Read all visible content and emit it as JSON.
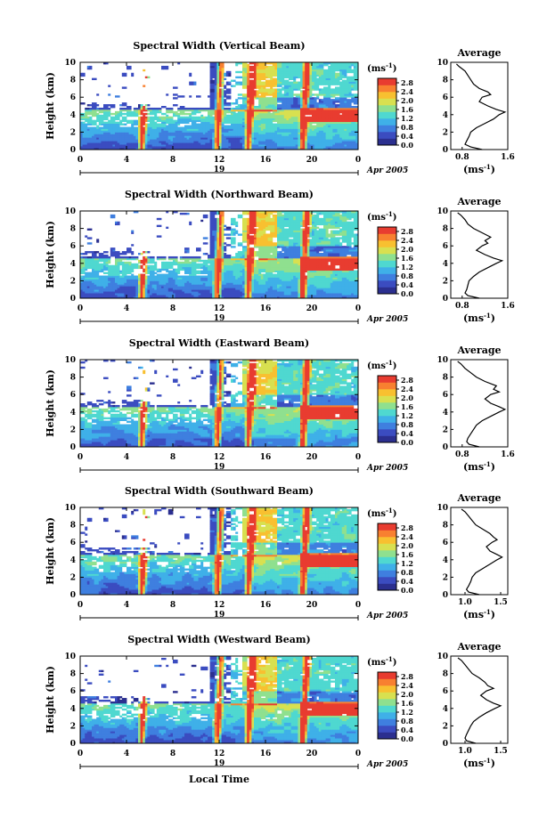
{
  "figure": {
    "xlabel": "Local Time",
    "cbar_unit": "(ms",
    "cbar_unit_exp": "-1",
    "cbar_unit_close": ")",
    "avg_unit": "(ms",
    "avg_unit_exp": "-1",
    "avg_unit_close": ")",
    "date_day": "19",
    "date_month_year": "Apr 2005",
    "colors": {
      "cmap": [
        "#2b2f8f",
        "#3b4cc0",
        "#3f7fdf",
        "#3fb0e8",
        "#4fd8d0",
        "#8fe08f",
        "#d8e050",
        "#f8c030",
        "#f88030",
        "#e83c30"
      ]
    }
  },
  "chart_data": [
    {
      "type": "heatmap",
      "title": "Spectral Width (Vertical Beam)",
      "ylabel": "Height (km)",
      "xlim": [
        0,
        24
      ],
      "ylim": [
        0,
        10
      ],
      "xticks": [
        "0",
        "4",
        "8",
        "12",
        "16",
        "20",
        "0"
      ],
      "yticks": [
        "0",
        "2",
        "4",
        "6",
        "8",
        "10"
      ],
      "cbar_ticks": [
        "0.0",
        "0.4",
        "0.8",
        "1.2",
        "1.6",
        "2.0",
        "2.4",
        "2.8"
      ],
      "cbar_range": [
        0,
        3.0
      ],
      "avg_title": "Average",
      "avg_xlim": [
        0.6,
        1.6
      ],
      "avg_xticks": [
        "0.8",
        "1.6"
      ],
      "avg_profile": {
        "height_km": [
          0.0,
          0.3,
          0.6,
          1.0,
          1.5,
          2.0,
          2.5,
          3.0,
          3.5,
          4.0,
          4.3,
          4.6,
          5.0,
          5.5,
          6.0,
          6.3,
          6.6,
          7.0,
          7.5,
          8.0,
          8.5,
          9.0,
          9.5,
          9.8
        ],
        "width_ms": [
          1.15,
          0.95,
          0.85,
          0.88,
          0.92,
          0.95,
          1.05,
          1.2,
          1.35,
          1.45,
          1.55,
          1.4,
          1.25,
          1.1,
          1.15,
          1.3,
          1.25,
          1.1,
          1.0,
          0.95,
          0.9,
          0.85,
          0.75,
          0.7
        ]
      }
    },
    {
      "type": "heatmap",
      "title": "Spectral Width (Northward Beam)",
      "ylabel": "Height (km)",
      "xlim": [
        0,
        24
      ],
      "ylim": [
        0,
        10
      ],
      "xticks": [
        "0",
        "4",
        "8",
        "12",
        "16",
        "20",
        "0"
      ],
      "yticks": [
        "0",
        "2",
        "4",
        "6",
        "8",
        "10"
      ],
      "cbar_ticks": [
        "0.0",
        "0.4",
        "0.8",
        "1.2",
        "1.6",
        "2.0",
        "2.4",
        "2.8"
      ],
      "cbar_range": [
        0,
        3.0
      ],
      "avg_title": "Average",
      "avg_xlim": [
        0.6,
        1.6
      ],
      "avg_xticks": [
        "0.8",
        "1.6"
      ],
      "avg_profile": {
        "height_km": [
          0.0,
          0.3,
          0.6,
          1.0,
          1.5,
          2.0,
          2.5,
          3.0,
          3.5,
          4.0,
          4.3,
          4.6,
          5.0,
          5.5,
          6.0,
          6.3,
          6.6,
          7.0,
          7.5,
          8.0,
          8.5,
          9.0,
          9.5,
          9.8
        ],
        "width_ms": [
          1.1,
          0.9,
          0.85,
          0.88,
          0.9,
          0.92,
          1.0,
          1.1,
          1.25,
          1.4,
          1.5,
          1.35,
          1.2,
          1.05,
          1.15,
          1.25,
          1.2,
          1.3,
          1.15,
          1.0,
          0.9,
          0.85,
          0.78,
          0.72
        ]
      }
    },
    {
      "type": "heatmap",
      "title": "Spectral Width (Eastward Beam)",
      "ylabel": "Height (km)",
      "xlim": [
        0,
        24
      ],
      "ylim": [
        0,
        10
      ],
      "xticks": [
        "0",
        "4",
        "8",
        "12",
        "16",
        "20",
        "0"
      ],
      "yticks": [
        "0",
        "2",
        "4",
        "6",
        "8",
        "10"
      ],
      "cbar_ticks": [
        "0.0",
        "0.4",
        "0.8",
        "1.2",
        "1.6",
        "2.0",
        "2.4",
        "2.8"
      ],
      "cbar_range": [
        0,
        3.0
      ],
      "avg_title": "Average",
      "avg_xlim": [
        0.6,
        1.6
      ],
      "avg_xticks": [
        "0.8",
        "1.6"
      ],
      "avg_profile": {
        "height_km": [
          0.0,
          0.3,
          0.6,
          1.0,
          1.5,
          2.0,
          2.5,
          3.0,
          3.5,
          4.0,
          4.3,
          4.6,
          5.0,
          5.5,
          6.0,
          6.3,
          6.6,
          7.0,
          7.5,
          8.0,
          8.5,
          9.0,
          9.5,
          9.8
        ],
        "width_ms": [
          1.1,
          0.92,
          0.88,
          0.9,
          0.95,
          1.0,
          1.05,
          1.15,
          1.3,
          1.45,
          1.55,
          1.45,
          1.3,
          1.2,
          1.3,
          1.45,
          1.35,
          1.4,
          1.2,
          1.05,
          0.95,
          0.85,
          0.78,
          0.72
        ]
      }
    },
    {
      "type": "heatmap",
      "title": "Spectral Width (Southward Beam)",
      "ylabel": "Height (km)",
      "xlim": [
        0,
        24
      ],
      "ylim": [
        0,
        10
      ],
      "xticks": [
        "0",
        "4",
        "8",
        "12",
        "16",
        "20",
        "0"
      ],
      "yticks": [
        "0",
        "2",
        "4",
        "6",
        "8",
        "10"
      ],
      "cbar_ticks": [
        "0.0",
        "0.4",
        "0.8",
        "1.2",
        "1.6",
        "2.0",
        "2.4",
        "2.8"
      ],
      "cbar_range": [
        0,
        3.0
      ],
      "avg_title": "Average",
      "avg_xlim": [
        0.8,
        1.6
      ],
      "avg_xticks": [
        "1.0",
        "1.5"
      ],
      "avg_profile": {
        "height_km": [
          0.0,
          0.3,
          0.6,
          1.0,
          1.5,
          2.0,
          2.5,
          3.0,
          3.5,
          4.0,
          4.3,
          4.6,
          5.0,
          5.5,
          6.0,
          6.3,
          6.6,
          7.0,
          7.5,
          8.0,
          8.5,
          9.0,
          9.5,
          9.8
        ],
        "width_ms": [
          1.2,
          1.05,
          1.02,
          1.05,
          1.08,
          1.1,
          1.15,
          1.25,
          1.35,
          1.45,
          1.52,
          1.45,
          1.35,
          1.3,
          1.38,
          1.45,
          1.4,
          1.35,
          1.25,
          1.15,
          1.1,
          1.05,
          1.0,
          0.95
        ]
      }
    },
    {
      "type": "heatmap",
      "title": "Spectral Width (Westward Beam)",
      "ylabel": "Height (km)",
      "xlim": [
        0,
        24
      ],
      "ylim": [
        0,
        10
      ],
      "xticks": [
        "0",
        "4",
        "8",
        "12",
        "16",
        "20",
        "0"
      ],
      "yticks": [
        "0",
        "2",
        "4",
        "6",
        "8",
        "10"
      ],
      "cbar_ticks": [
        "0.0",
        "0.4",
        "0.8",
        "1.2",
        "1.6",
        "2.0",
        "2.4",
        "2.8"
      ],
      "cbar_range": [
        0,
        3.0
      ],
      "avg_title": "Average",
      "avg_xlim": [
        0.8,
        1.6
      ],
      "avg_xticks": [
        "1.0",
        "1.5"
      ],
      "avg_profile": {
        "height_km": [
          0.0,
          0.3,
          0.6,
          1.0,
          1.5,
          2.0,
          2.5,
          3.0,
          3.5,
          4.0,
          4.3,
          4.6,
          5.0,
          5.5,
          6.0,
          6.3,
          6.6,
          7.0,
          7.5,
          8.0,
          8.5,
          9.0,
          9.5,
          9.8
        ],
        "width_ms": [
          1.15,
          1.02,
          1.0,
          1.02,
          1.05,
          1.08,
          1.12,
          1.2,
          1.3,
          1.42,
          1.5,
          1.4,
          1.3,
          1.22,
          1.3,
          1.4,
          1.32,
          1.28,
          1.2,
          1.1,
          1.05,
          1.0,
          0.95,
          0.9
        ]
      }
    }
  ]
}
